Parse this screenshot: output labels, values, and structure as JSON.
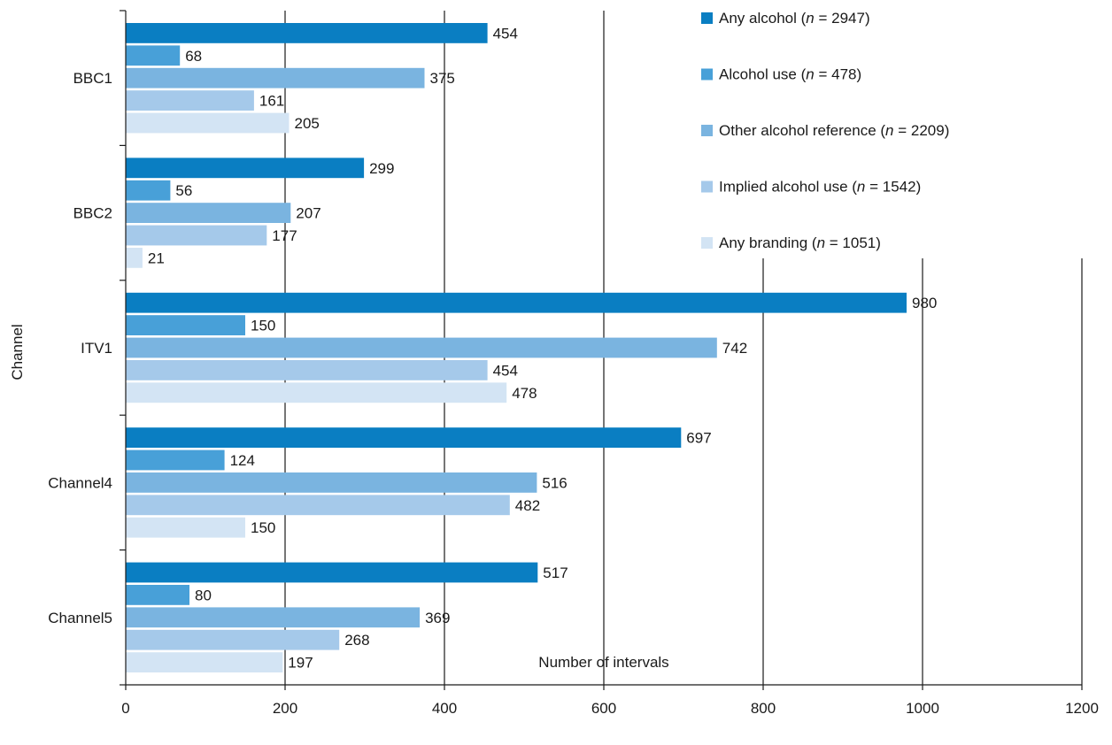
{
  "chart_data": {
    "type": "bar",
    "orientation": "horizontal",
    "title": "",
    "xlabel": "Number of intervals",
    "ylabel": "Channel",
    "xlim": [
      0,
      1200
    ],
    "xticks": [
      "0",
      "200",
      "400",
      "600",
      "800",
      "1000",
      "1200"
    ],
    "grid": "vertical",
    "legend_position": "top-right",
    "categories": [
      "BBC1",
      "BBC2",
      "ITV1",
      "Channel4",
      "Channel5"
    ],
    "series": [
      {
        "name": "Any alcohol",
        "n": "2947",
        "color": "#0a7ec2",
        "values": [
          454,
          299,
          980,
          697,
          517
        ]
      },
      {
        "name": "Alcohol use ",
        "n": "478",
        "color": "#48a0d8",
        "values": [
          68,
          56,
          150,
          124,
          80
        ]
      },
      {
        "name": "Other alcohol reference",
        "n": "2209",
        "color": "#7ab4e0",
        "values": [
          375,
          207,
          742,
          516,
          369
        ]
      },
      {
        "name": "Implied alcohol use",
        "n": "1542",
        "color": "#a5c9ea",
        "values": [
          161,
          177,
          454,
          482,
          268
        ]
      },
      {
        "name": "Any branding",
        "n": "1051",
        "color": "#d3e4f4",
        "values": [
          205,
          21,
          478,
          150,
          197
        ]
      }
    ]
  }
}
